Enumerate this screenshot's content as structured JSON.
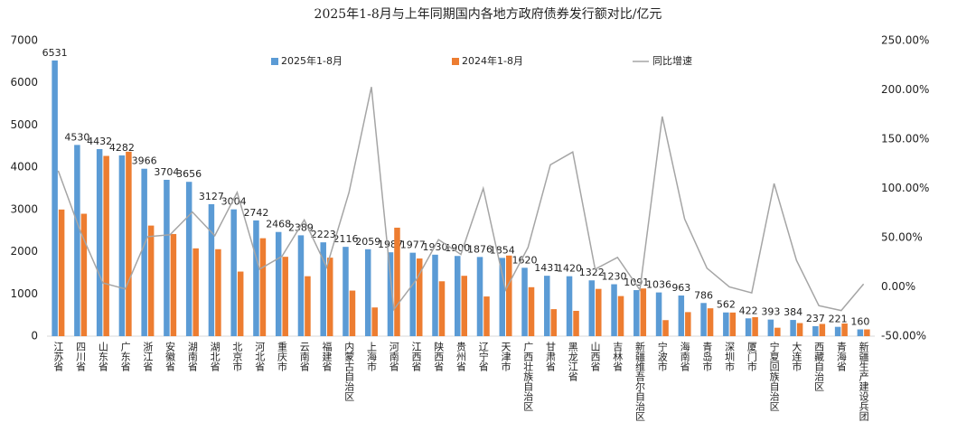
{
  "chart_data": {
    "type": "bar-line",
    "title": "2025年1-8月与上年同期国内各地方政府债券发行额对比/亿元",
    "categories": [
      "江苏省",
      "四川省",
      "山东省",
      "广东省",
      "浙江省",
      "安徽省",
      "湖南省",
      "湖北省",
      "北京市",
      "河北省",
      "重庆市",
      "云南省",
      "福建省",
      "内蒙古自治区",
      "上海市",
      "河南省",
      "江西省",
      "陕西省",
      "贵州省",
      "辽宁省",
      "天津市",
      "广西壮族自治区",
      "甘肃省",
      "黑龙江省",
      "山西省",
      "吉林省",
      "新疆维吾尔自治区",
      "宁波市",
      "海南省",
      "青岛市",
      "深圳市",
      "厦门市",
      "宁夏回族自治区",
      "大连市",
      "西藏自治区",
      "青海省",
      "新疆生产建设兵团"
    ],
    "series": [
      {
        "name": "2025年1-8月",
        "color": "#5b9bd5",
        "values": [
          6531,
          4530,
          4432,
          4282,
          3966,
          3704,
          3656,
          3127,
          3004,
          2742,
          2468,
          2389,
          2223,
          2116,
          2059,
          1987,
          1977,
          1930,
          1900,
          1876,
          1854,
          1620,
          1431,
          1420,
          1322,
          1230,
          1091,
          1036,
          963,
          786,
          562,
          422,
          393,
          384,
          237,
          221,
          160
        ]
      },
      {
        "name": "2024年1-8月",
        "color": "#ed7d31",
        "values": [
          3000,
          2900,
          4270,
          4370,
          2620,
          2420,
          2080,
          2060,
          1530,
          2320,
          1880,
          1420,
          1860,
          1080,
          680,
          2570,
          1840,
          1300,
          1430,
          940,
          1910,
          1160,
          640,
          600,
          1120,
          950,
          1130,
          380,
          570,
          660,
          560,
          450,
          200,
          310,
          290,
          300,
          160
        ]
      },
      {
        "name": "同比增速",
        "color": "#a5a5a5",
        "axis": "y2",
        "values": [
          118,
          56,
          4,
          -2,
          51,
          53,
          76,
          52,
          96,
          18,
          31,
          68,
          20,
          96,
          203,
          -23,
          7,
          48,
          33,
          100,
          -3,
          40,
          124,
          137,
          18,
          30,
          -3,
          173,
          69,
          19,
          0,
          -6,
          105,
          27,
          -19,
          -24,
          3
        ]
      }
    ],
    "ylim": [
      0,
      7000
    ],
    "yticks": [
      0,
      1000,
      2000,
      3000,
      4000,
      5000,
      6000,
      7000
    ],
    "y2lim": [
      -50,
      250
    ],
    "y2ticks": [
      {
        "value": -50,
        "label": "-50.00%"
      },
      {
        "value": 0,
        "label": "0.00%"
      },
      {
        "value": 50,
        "label": "50.00%"
      },
      {
        "value": 100,
        "label": "100.00%"
      },
      {
        "value": 150,
        "label": "150.00%"
      },
      {
        "value": 200,
        "label": "200.00%"
      },
      {
        "value": 250,
        "label": "250.00%"
      }
    ]
  }
}
